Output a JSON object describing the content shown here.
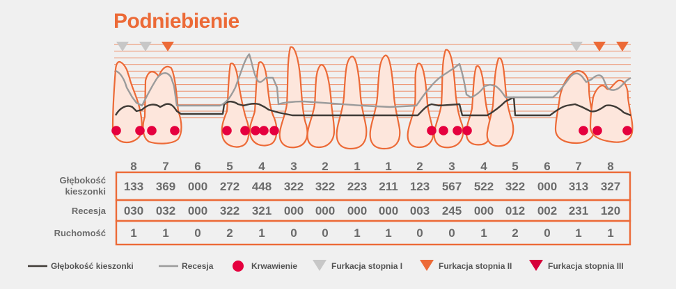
{
  "title": "Podniebienie",
  "colors": {
    "accent": "#ec6a37",
    "pocket_line": "#3f3b36",
    "recession_line": "#9b9b9b",
    "bleeding": "#e5003e",
    "furcation_1": "#c7c7c7",
    "furcation_2": "#ec6a37",
    "furcation_3": "#d6003a",
    "tooth_fill": "#fde6dc",
    "text": "#6b6b6b"
  },
  "chart_data": {
    "type": "table",
    "teeth": [
      "8",
      "7",
      "6",
      "5",
      "4",
      "3",
      "2",
      "1",
      "1",
      "2",
      "3",
      "4",
      "5",
      "6",
      "7",
      "8"
    ],
    "rows": [
      {
        "label_lines": [
          "Głębokość",
          "kieszonki"
        ],
        "values": [
          "133",
          "369",
          "000",
          "272",
          "448",
          "322",
          "322",
          "223",
          "211",
          "123",
          "567",
          "522",
          "322",
          "000",
          "313",
          "327"
        ]
      },
      {
        "label_lines": [
          "Recesja"
        ],
        "values": [
          "030",
          "032",
          "000",
          "322",
          "321",
          "000",
          "000",
          "000",
          "000",
          "003",
          "245",
          "000",
          "012",
          "002",
          "231",
          "120"
        ]
      },
      {
        "label_lines": [
          "Ruchomość"
        ],
        "values": [
          "1",
          "1",
          "0",
          "2",
          "1",
          "0",
          "0",
          "1",
          "1",
          "0",
          "0",
          "1",
          "2",
          "0",
          "1",
          "1"
        ]
      }
    ],
    "present": [
      true,
      true,
      false,
      true,
      true,
      true,
      true,
      true,
      true,
      true,
      true,
      true,
      true,
      false,
      true,
      true
    ],
    "bleeding_points": [
      [
        true,
        true,
        false
      ],
      [
        true,
        false,
        true
      ],
      [
        false,
        false,
        false
      ],
      [
        true,
        false,
        true
      ],
      [
        true,
        true,
        true
      ],
      [
        false,
        false,
        false
      ],
      [
        false,
        false,
        false
      ],
      [
        false,
        false,
        false
      ],
      [
        false,
        false,
        false
      ],
      [
        false,
        false,
        false
      ],
      [
        true,
        true,
        true
      ],
      [
        false,
        false,
        false
      ],
      [
        false,
        false,
        false
      ],
      [
        false,
        false,
        false
      ],
      [
        false,
        false,
        true
      ],
      [
        true,
        false,
        true
      ]
    ],
    "furcation": [
      1,
      1,
      0,
      0,
      0,
      0,
      0,
      0,
      0,
      0,
      0,
      0,
      0,
      0,
      1,
      2
    ],
    "furcation_extra": [
      {
        "tooth": 15,
        "grade": 2
      },
      {
        "tooth": 1,
        "grade": 2
      }
    ]
  },
  "legend": [
    {
      "type": "line",
      "color_key": "pocket_line",
      "label": "Głębokość kieszonki"
    },
    {
      "type": "line",
      "color_key": "recession_line",
      "label": "Recesja"
    },
    {
      "type": "dot",
      "color_key": "bleeding",
      "label": "Krwawienie"
    },
    {
      "type": "tri",
      "color_key": "furcation_1",
      "label": "Furkacja stopnia I"
    },
    {
      "type": "tri",
      "color_key": "furcation_2",
      "label": "Furkacja stopnia II"
    },
    {
      "type": "tri",
      "color_key": "furcation_3",
      "label": "Furkacja stopnia III"
    }
  ]
}
